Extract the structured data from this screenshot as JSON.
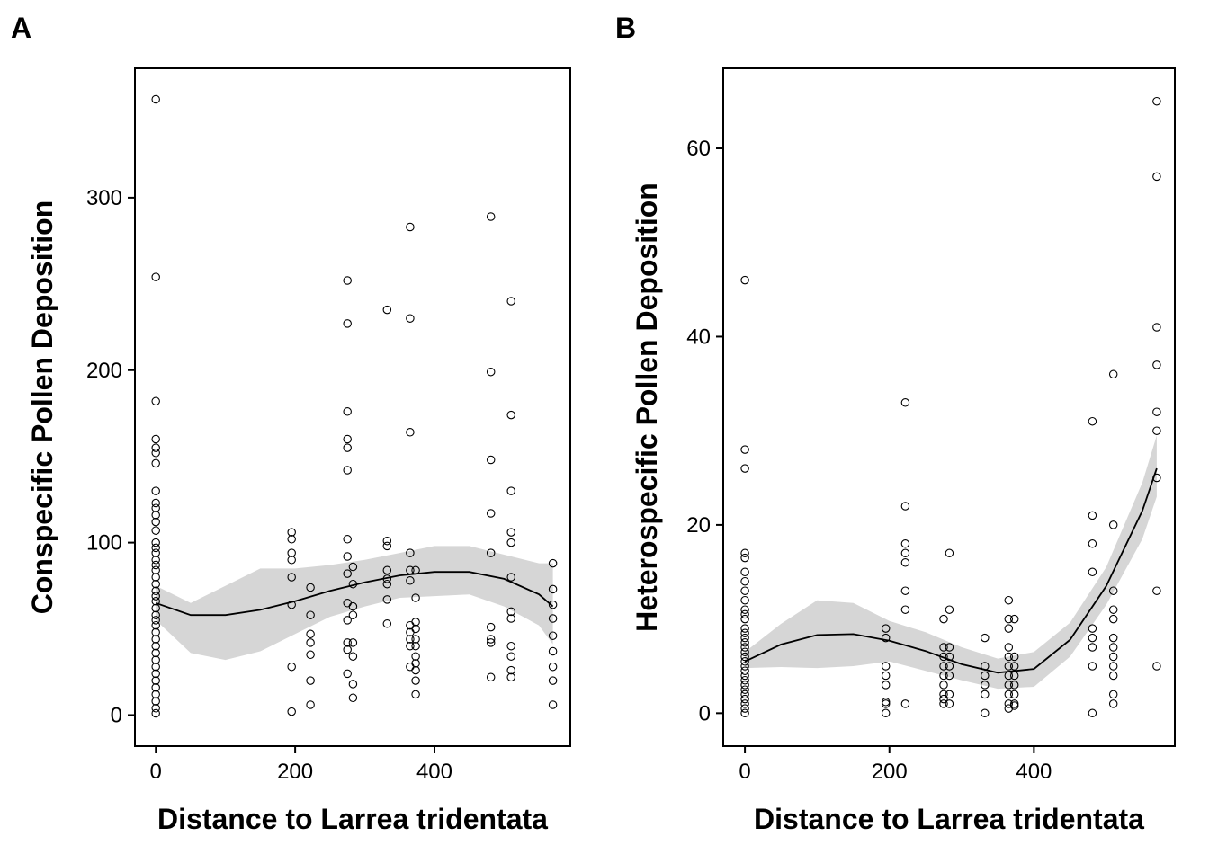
{
  "chart_data": [
    {
      "type": "scatter",
      "panel_label": "A",
      "xlabel": "Distance to Larrea tridentata",
      "ylabel": "Conspecific Pollen Deposition",
      "xlim": [
        -30,
        595
      ],
      "ylim": [
        -18,
        375
      ],
      "x_ticks": [
        0,
        200,
        400
      ],
      "y_ticks": [
        0,
        100,
        200,
        300
      ],
      "grid": false,
      "points": [
        {
          "x": 0,
          "y": [
            357,
            254,
            182,
            160,
            155,
            152,
            146,
            130,
            123,
            120,
            116,
            112,
            107,
            100,
            97,
            94,
            90,
            87,
            84,
            80,
            76,
            72,
            69,
            66,
            62,
            58,
            55,
            52,
            48,
            44,
            40,
            36,
            32,
            28,
            24,
            20,
            16,
            12,
            8,
            4,
            1
          ]
        },
        {
          "x": 195,
          "y": [
            106,
            102,
            94,
            90,
            80,
            64,
            28,
            2
          ]
        },
        {
          "x": 222,
          "y": [
            74,
            58,
            47,
            42,
            35,
            20,
            6
          ]
        },
        {
          "x": 275,
          "y": [
            252,
            227,
            176,
            160,
            155,
            142,
            102,
            92,
            82,
            65,
            55,
            42,
            38,
            24
          ]
        },
        {
          "x": 283,
          "y": [
            86,
            76,
            63,
            58,
            42,
            34,
            18,
            10
          ]
        },
        {
          "x": 332,
          "y": [
            235,
            101,
            98,
            84,
            79,
            76,
            67,
            53
          ]
        },
        {
          "x": 365,
          "y": [
            283,
            230,
            164,
            94,
            84,
            78,
            52,
            48,
            44,
            40,
            28
          ]
        },
        {
          "x": 373,
          "y": [
            84,
            68,
            54,
            50,
            44,
            40,
            34,
            30,
            26,
            20,
            12
          ]
        },
        {
          "x": 481,
          "y": [
            289,
            199,
            148,
            117,
            94,
            51,
            44,
            42,
            22
          ]
        },
        {
          "x": 510,
          "y": [
            240,
            174,
            130,
            106,
            100,
            80,
            60,
            56,
            40,
            34,
            26,
            22
          ]
        },
        {
          "x": 570,
          "y": [
            88,
            73,
            64,
            56,
            46,
            37,
            28,
            20,
            6
          ]
        }
      ],
      "smooth": {
        "x": [
          0,
          50,
          100,
          150,
          200,
          250,
          300,
          350,
          400,
          450,
          500,
          550,
          570
        ],
        "y": [
          65,
          58,
          58,
          61,
          66,
          72,
          77,
          81,
          83,
          83,
          79,
          70,
          63
        ],
        "lower": [
          55,
          36,
          32,
          37,
          47,
          57,
          63,
          68,
          69,
          70,
          63,
          52,
          41
        ],
        "upper": [
          75,
          65,
          75,
          85,
          85,
          87,
          90,
          94,
          98,
          98,
          93,
          88,
          88
        ]
      }
    },
    {
      "type": "scatter",
      "panel_label": "B",
      "xlabel": "Distance to Larrea tridentata",
      "ylabel": "Heterospecific Pollen Deposition",
      "xlim": [
        -30,
        595
      ],
      "ylim": [
        -3.5,
        68.5
      ],
      "x_ticks": [
        0,
        200,
        400
      ],
      "y_ticks": [
        0,
        20,
        40,
        60
      ],
      "grid": false,
      "points": [
        {
          "x": 0,
          "y": [
            46,
            28,
            26,
            17,
            16.5,
            15,
            14,
            13,
            12,
            11,
            10.5,
            10,
            9,
            8.5,
            8,
            7.5,
            7,
            6.5,
            6,
            5.5,
            5,
            4.5,
            4,
            3.5,
            3,
            2.5,
            2,
            1.5,
            1,
            0.5,
            0
          ]
        },
        {
          "x": 195,
          "y": [
            9,
            8,
            5,
            4,
            3,
            1.2,
            1,
            0
          ]
        },
        {
          "x": 222,
          "y": [
            33,
            22,
            18,
            17,
            16,
            13,
            11,
            1
          ]
        },
        {
          "x": 275,
          "y": [
            10,
            7,
            6,
            5,
            4,
            3,
            2,
            1.5,
            1
          ]
        },
        {
          "x": 283,
          "y": [
            17,
            11,
            7,
            6,
            5,
            4,
            2,
            1
          ]
        },
        {
          "x": 332,
          "y": [
            8,
            5,
            4,
            3,
            2,
            0
          ]
        },
        {
          "x": 365,
          "y": [
            12,
            10,
            9,
            7,
            6,
            5,
            4,
            3,
            2,
            1,
            0.5
          ]
        },
        {
          "x": 373,
          "y": [
            10,
            6,
            5,
            4,
            3,
            2,
            1,
            0.8
          ]
        },
        {
          "x": 481,
          "y": [
            31,
            21,
            18,
            15,
            9,
            8,
            7,
            5,
            0
          ]
        },
        {
          "x": 510,
          "y": [
            36,
            20,
            13,
            11,
            10,
            8,
            7,
            6,
            5,
            4,
            2,
            1
          ]
        },
        {
          "x": 570,
          "y": [
            65,
            57,
            41,
            37,
            32,
            30,
            25,
            13,
            5
          ]
        }
      ],
      "smooth": {
        "x": [
          0,
          50,
          100,
          150,
          200,
          250,
          300,
          350,
          400,
          450,
          500,
          550,
          570
        ],
        "y": [
          5.5,
          7.3,
          8.3,
          8.4,
          7.7,
          6.6,
          5.2,
          4.3,
          4.7,
          7.8,
          13.5,
          21.5,
          26
        ],
        "lower": [
          4.8,
          4.9,
          4.8,
          5.0,
          5.5,
          4.5,
          3.5,
          2.6,
          2.8,
          6.0,
          11.5,
          18.5,
          23
        ],
        "upper": [
          6.5,
          9.5,
          12.0,
          11.7,
          9.8,
          8.6,
          7.0,
          5.8,
          6.5,
          9.6,
          15.5,
          24.5,
          29.5
        ]
      }
    }
  ]
}
